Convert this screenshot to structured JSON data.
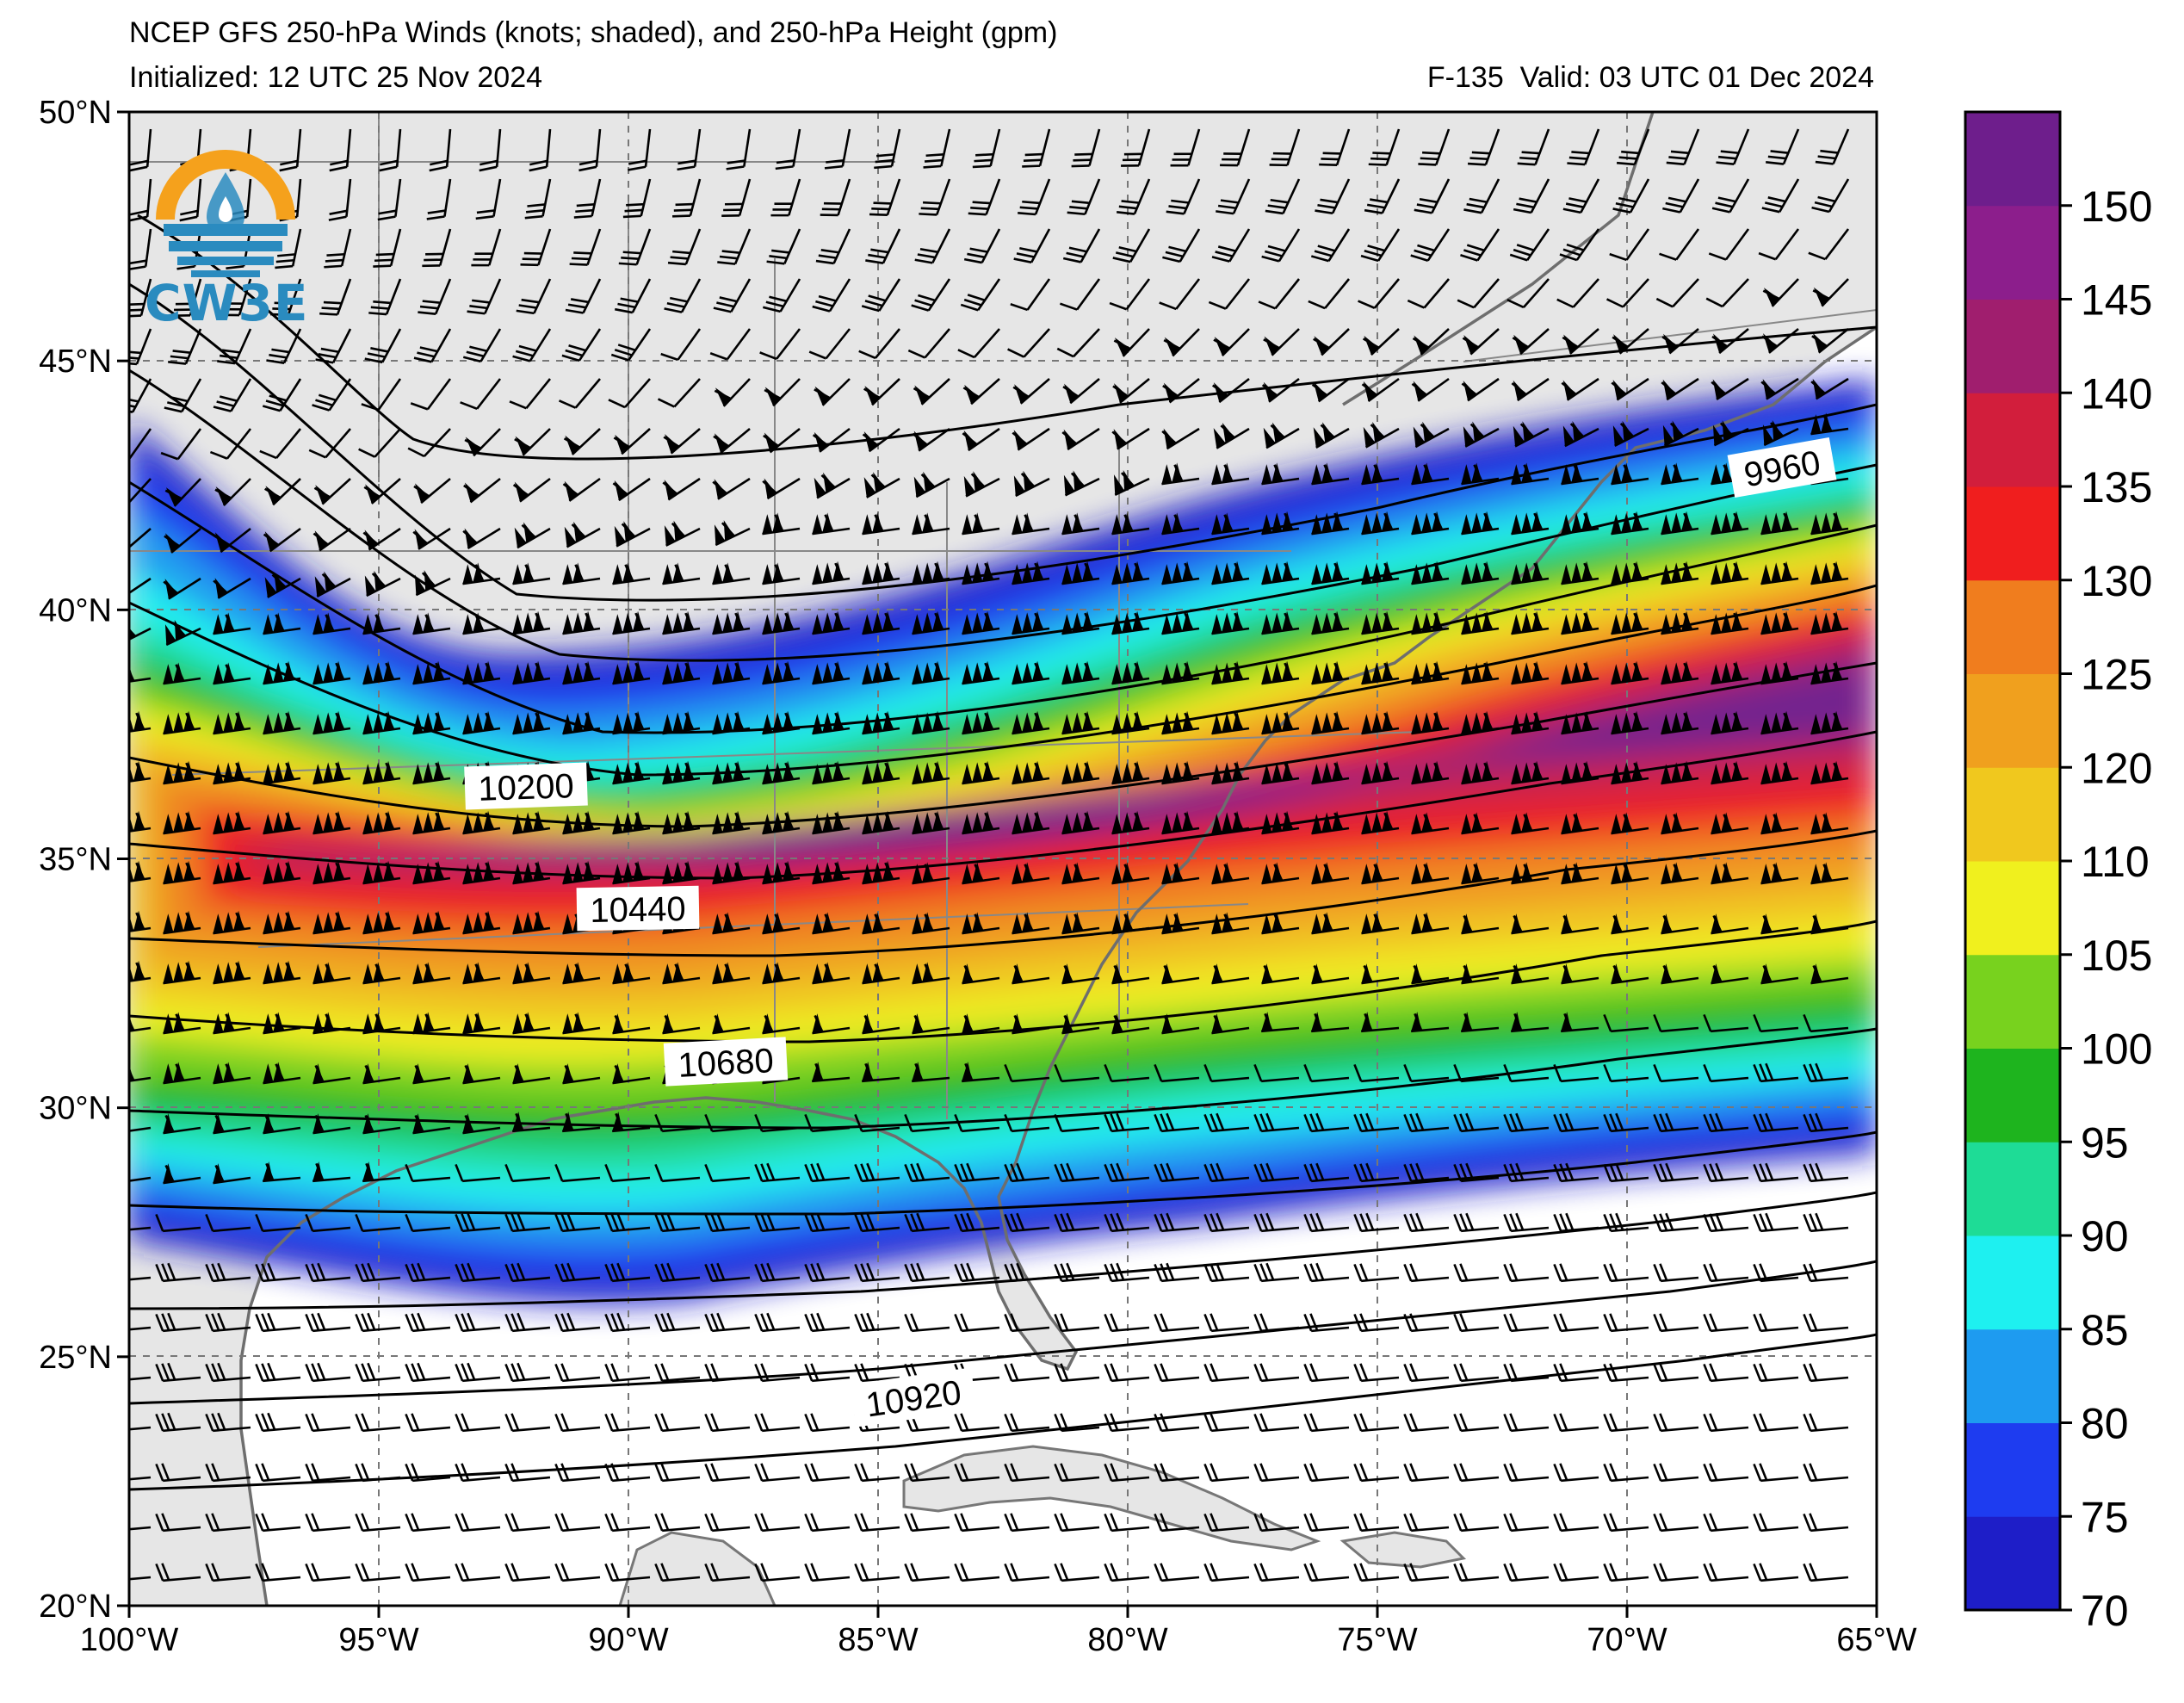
{
  "title": {
    "line1": "NCEP GFS 250-hPa Winds (knots; shaded), and 250-hPa Height (gpm)",
    "line2": "Initialized: 12 UTC 25 Nov 2024",
    "line3": "F-135  Valid: 03 UTC 01 Dec 2024"
  },
  "logo": {
    "text": "CW3E",
    "icon": "cw3e-water-drop-logo-icon"
  },
  "map": {
    "lon_range": [
      -100,
      -65
    ],
    "lat_range": [
      20,
      50
    ],
    "lon_ticks": [
      "100°W",
      "95°W",
      "90°W",
      "85°W",
      "80°W",
      "75°W",
      "70°W",
      "65°W"
    ],
    "lat_ticks": [
      "20°N",
      "25°N",
      "30°N",
      "35°N",
      "40°N",
      "45°N",
      "50°N"
    ],
    "height_contour_labels": [
      "10200",
      "10440",
      "10680",
      "10920",
      "9960"
    ],
    "land_color": "#e6e6e6",
    "ocean_color": "#ffffff"
  },
  "colorbar": {
    "ticks": [
      "70",
      "75",
      "80",
      "85",
      "90",
      "95",
      "100",
      "105",
      "110",
      "120",
      "125",
      "130",
      "135",
      "140",
      "145",
      "150"
    ],
    "colors": [
      "#1e1ec8",
      "#1e3cf0",
      "#1e9bf0",
      "#1ef0f0",
      "#1edc96",
      "#1eb41e",
      "#78d21e",
      "#f0f01e",
      "#f0c81e",
      "#f0a01e",
      "#f07d1e",
      "#f01e1e",
      "#d21e3c",
      "#a01e6e",
      "#8c1e8c",
      "#6e1e8c"
    ]
  }
}
